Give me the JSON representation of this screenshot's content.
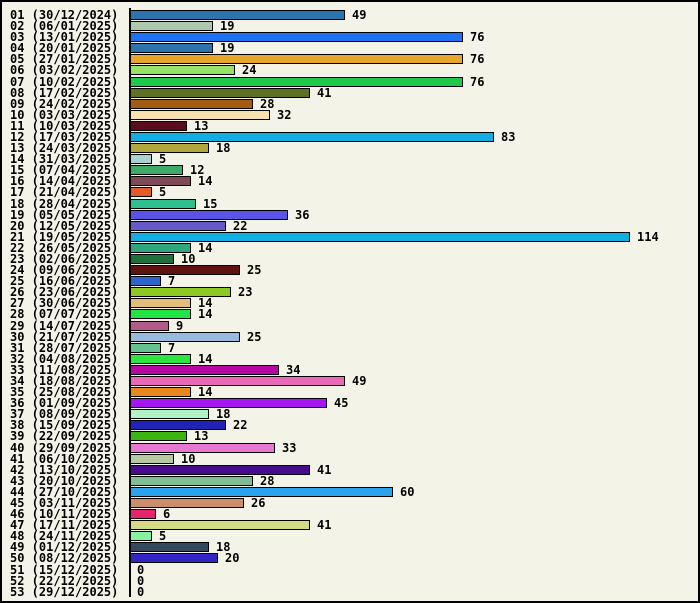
{
  "chart_data": {
    "type": "bar",
    "orientation": "horizontal",
    "title": "",
    "xlabel": "",
    "ylabel": "",
    "xlim": [
      0,
      114
    ],
    "grid": false,
    "legend": "none",
    "background_color": "#f4f3e7",
    "axis_color": "#000000",
    "bar_border_color": "#000000",
    "text_color": "#000000",
    "categories": [
      "01 (30/12/2024)",
      "02 (06/01/2025)",
      "03 (13/01/2025)",
      "04 (20/01/2025)",
      "05 (27/01/2025)",
      "06 (03/02/2025)",
      "07 (10/02/2025)",
      "08 (17/02/2025)",
      "09 (24/02/2025)",
      "10 (03/03/2025)",
      "11 (10/03/2025)",
      "12 (17/03/2025)",
      "13 (24/03/2025)",
      "14 (31/03/2025)",
      "15 (07/04/2025)",
      "16 (14/04/2025)",
      "17 (21/04/2025)",
      "18 (28/04/2025)",
      "19 (05/05/2025)",
      "20 (12/05/2025)",
      "21 (19/05/2025)",
      "22 (26/05/2025)",
      "23 (02/06/2025)",
      "24 (09/06/2025)",
      "25 (16/06/2025)",
      "26 (23/06/2025)",
      "27 (30/06/2025)",
      "28 (07/07/2025)",
      "29 (14/07/2025)",
      "30 (21/07/2025)",
      "31 (28/07/2025)",
      "32 (04/08/2025)",
      "33 (11/08/2025)",
      "34 (18/08/2025)",
      "35 (25/08/2025)",
      "36 (01/09/2025)",
      "37 (08/09/2025)",
      "38 (15/09/2025)",
      "39 (22/09/2025)",
      "40 (29/09/2025)",
      "41 (06/10/2025)",
      "42 (13/10/2025)",
      "43 (20/10/2025)",
      "44 (27/10/2025)",
      "45 (03/11/2025)",
      "46 (10/11/2025)",
      "47 (17/11/2025)",
      "48 (24/11/2025)",
      "49 (01/12/2025)",
      "50 (08/12/2025)",
      "51 (15/12/2025)",
      "52 (22/12/2025)",
      "53 (29/12/2025)"
    ],
    "values": [
      49,
      19,
      76,
      19,
      76,
      24,
      76,
      41,
      28,
      32,
      13,
      83,
      18,
      5,
      12,
      14,
      5,
      15,
      36,
      22,
      114,
      14,
      10,
      25,
      7,
      23,
      14,
      14,
      9,
      25,
      7,
      14,
      34,
      49,
      14,
      45,
      18,
      22,
      13,
      33,
      10,
      41,
      28,
      60,
      26,
      6,
      41,
      5,
      18,
      20,
      0,
      0,
      0
    ],
    "colors": [
      "#2d73ad",
      "#adc8ad",
      "#1d71f2",
      "#2d73ad",
      "#e6a62c",
      "#97e366",
      "#1fc94a",
      "#5d7024",
      "#a45c15",
      "#f6e0b0",
      "#5a0d1b",
      "#12aee2",
      "#b2a73c",
      "#a9d1cf",
      "#3eaa68",
      "#7e4a55",
      "#e55a26",
      "#2fc08f",
      "#5b53e6",
      "#6659c9",
      "#12aee2",
      "#2fa67e",
      "#1f6f3a",
      "#5e130e",
      "#2b64ca",
      "#8dc922",
      "#e3bd7c",
      "#21e545",
      "#b25a8a",
      "#98bade",
      "#63c28f",
      "#2ce53e",
      "#b609a3",
      "#ea68b8",
      "#e8871c",
      "#a316ef",
      "#b2f2c6",
      "#2023b6",
      "#3ab512",
      "#e677d2",
      "#b5c9a3",
      "#470b8e",
      "#7fbd93",
      "#2aa3ef",
      "#c98e6b",
      "#e5246e",
      "#d5db85",
      "#85f2a2",
      "#35495e",
      "#3126c4",
      null,
      null,
      null
    ]
  }
}
